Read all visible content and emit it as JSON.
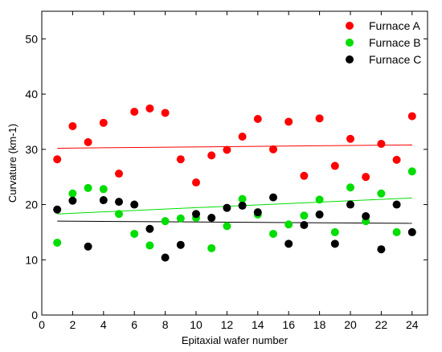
{
  "chart_data": {
    "type": "scatter",
    "title": "",
    "xlabel": "Epitaxial wafer number",
    "ylabel": "Curvature (km-1)",
    "xlim": [
      0,
      25
    ],
    "ylim": [
      0,
      55
    ],
    "xticks": [
      0,
      2,
      4,
      6,
      8,
      10,
      12,
      14,
      16,
      18,
      20,
      22,
      24
    ],
    "yticks": [
      0,
      10,
      20,
      30,
      40,
      50
    ],
    "grid": false,
    "legend_position": "top-right",
    "x": [
      1,
      2,
      3,
      4,
      5,
      6,
      7,
      8,
      9,
      10,
      11,
      12,
      13,
      14,
      15,
      16,
      17,
      18,
      19,
      20,
      21,
      22,
      23,
      24
    ],
    "series": [
      {
        "name": "Furnace A",
        "color": "#ff0000",
        "values": [
          28.2,
          34.2,
          31.3,
          34.8,
          25.6,
          36.8,
          37.4,
          36.6,
          28.2,
          24.0,
          28.9,
          29.9,
          32.3,
          35.5,
          30.0,
          35.0,
          25.2,
          35.6,
          27.0,
          31.9,
          25.0,
          31.0,
          28.1,
          36.0
        ],
        "trend": [
          30.2,
          30.8
        ]
      },
      {
        "name": "Furnace B",
        "color": "#00dd00",
        "values": [
          13.1,
          22.0,
          23.0,
          22.8,
          18.3,
          14.7,
          12.6,
          17.0,
          17.5,
          17.6,
          12.1,
          16.1,
          21.0,
          18.2,
          14.7,
          16.4,
          18.0,
          20.9,
          15.0,
          23.1,
          17.0,
          22.0,
          15.0,
          26.0
        ],
        "trend": [
          18.3,
          21.2
        ]
      },
      {
        "name": "Furnace C",
        "color": "#000000",
        "values": [
          19.1,
          20.7,
          12.4,
          20.8,
          20.5,
          20.0,
          15.6,
          10.4,
          12.7,
          18.3,
          17.6,
          19.4,
          19.8,
          18.6,
          21.3,
          12.9,
          16.3,
          18.2,
          12.9,
          20.0,
          17.9,
          11.9,
          20.0,
          15.0
        ],
        "trend": [
          17.0,
          16.6
        ]
      }
    ]
  }
}
